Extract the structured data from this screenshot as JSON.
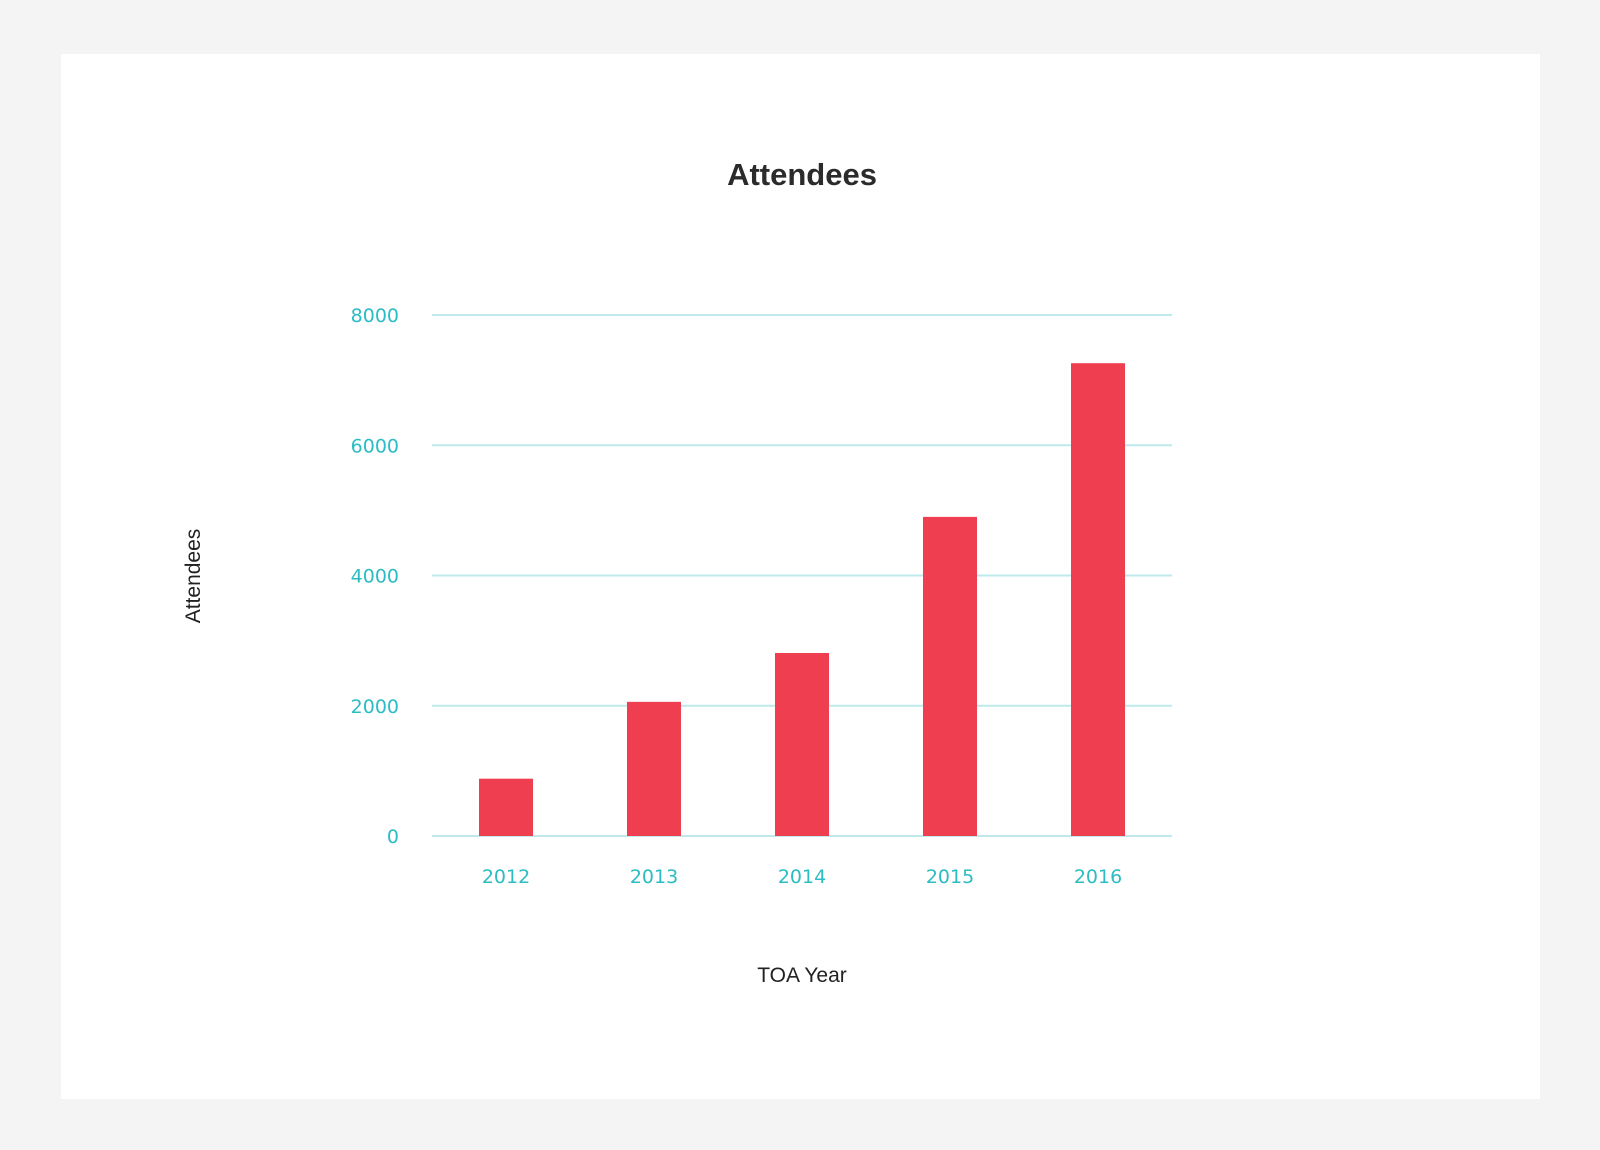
{
  "colors": {
    "page_background": "#f4f4f4",
    "card_background": "#ffffff",
    "bar": "#ef3e4f",
    "gridline": "#bfe9ec",
    "tick_label": "#2bbcc4",
    "title": "#2b2b2b",
    "axis_label": "#222222"
  },
  "chart_data": {
    "type": "bar",
    "title": "Attendees",
    "xlabel": "TOA Year",
    "ylabel": "Attendees",
    "categories": [
      "2012",
      "2013",
      "2014",
      "2015",
      "2016"
    ],
    "values": [
      880,
      2060,
      2810,
      4900,
      7260
    ],
    "ylim": [
      0,
      8000
    ],
    "yticks": [
      0,
      2000,
      4000,
      6000,
      8000
    ],
    "grid": true,
    "legend": "none"
  }
}
